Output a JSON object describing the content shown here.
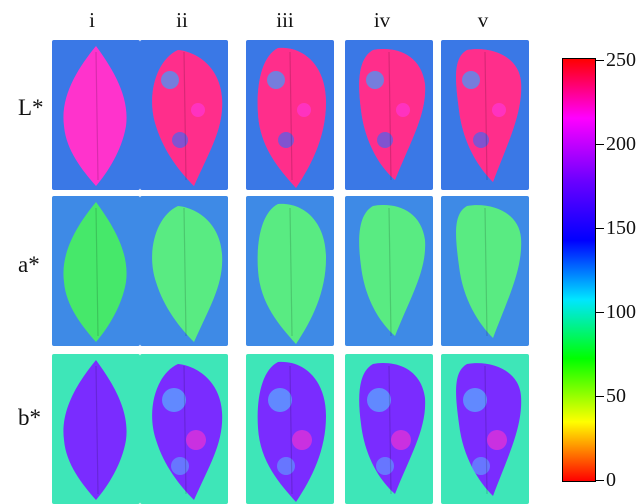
{
  "columns": [
    "i",
    "ii",
    "iii",
    "iv",
    "v"
  ],
  "rows": [
    "L*",
    "a*",
    "b*"
  ],
  "colorbar": {
    "ticks": [
      "250",
      "200",
      "150",
      "100",
      "50",
      "0"
    ],
    "gradient_stops": [
      "#ff0000",
      "#ff00ff",
      "#6a00ff",
      "#0000ff",
      "#00e6ff",
      "#00ff00",
      "#ffff00",
      "#ff0000"
    ]
  },
  "palette": {
    "L_background": "#3a78e6",
    "L_leaf": "#ff33cc",
    "a_background": "#3e8ae6",
    "a_leaf": "#46e86a",
    "b_background": "#3ee6b8",
    "b_leaf": "#7a2cff"
  }
}
